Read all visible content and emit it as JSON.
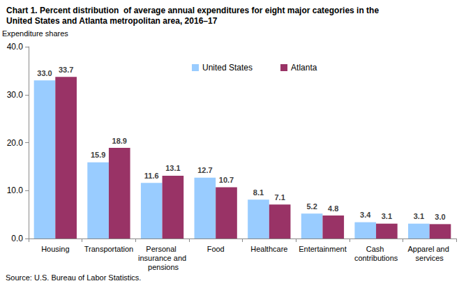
{
  "chart_data": {
    "type": "bar",
    "title": "Chart 1. Percent distribution  of average annual expenditures for eight major categories in the United States and Atlanta metropolitan area, 2016–17",
    "ylabel": "Expenditure shares",
    "annotations": [
      "Source: U.S. Bureau of Labor Statistics."
    ],
    "categories": [
      "Housing",
      "Transportation",
      "Personal insurance and pensions",
      "Food",
      "Healthcare",
      "Entertainment",
      "Cash contributions",
      "Apparel and services"
    ],
    "series": [
      {
        "name": "United States",
        "color": "#99ccff",
        "values": [
          33.0,
          15.9,
          11.6,
          12.7,
          8.1,
          5.2,
          3.4,
          3.1
        ],
        "value_labels": [
          "33.0",
          "15.9",
          "11.6",
          "12.7",
          "8.1",
          "5.2",
          "3.4",
          "3.1"
        ]
      },
      {
        "name": "Atlanta",
        "color": "#993366",
        "values": [
          33.7,
          18.9,
          13.1,
          10.7,
          7.1,
          4.8,
          3.1,
          3.0
        ],
        "value_labels": [
          "33.7",
          "18.9",
          "13.1",
          "10.7",
          "7.1",
          "4.8",
          "3.1",
          "3.0"
        ]
      }
    ],
    "ylim": [
      0,
      40
    ],
    "yticks": [
      {
        "value": 0,
        "label": "0.0"
      },
      {
        "value": 10,
        "label": "10.0"
      },
      {
        "value": 20,
        "label": "20.0"
      },
      {
        "value": 30,
        "label": "30.0"
      },
      {
        "value": 40,
        "label": "40.0"
      }
    ],
    "grid": false,
    "legend": "top",
    "data_labels": true
  }
}
